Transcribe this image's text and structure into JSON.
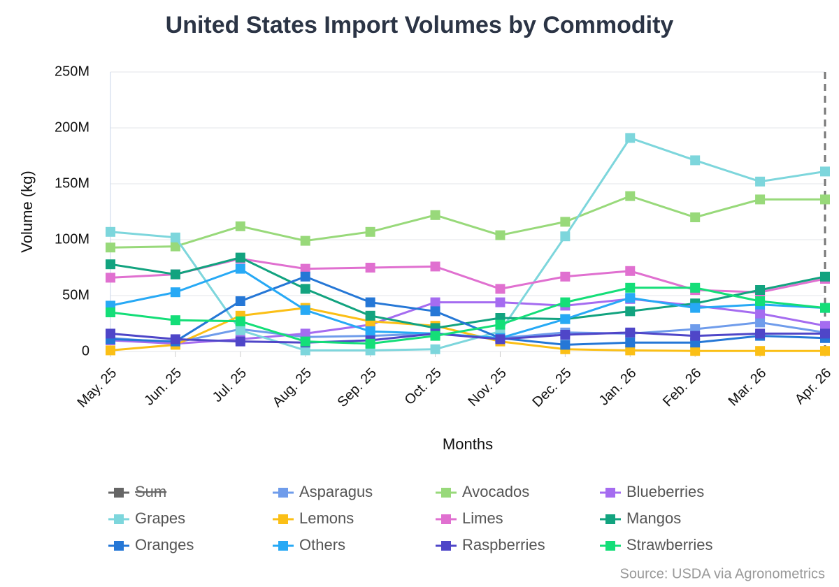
{
  "chart_data": {
    "type": "line",
    "title": "United States Import Volumes by Commodity",
    "x_label": "Months",
    "y_label": "Volume (kg)",
    "source": "Source: USDA via Agronometrics",
    "categories": [
      "May. 25",
      "Jun. 25",
      "Jul. 25",
      "Aug. 25",
      "Sep. 25",
      "Oct. 25",
      "Nov. 25",
      "Dec. 25",
      "Jan. 26",
      "Feb. 26",
      "Mar. 26",
      "Apr. 26"
    ],
    "ylim": [
      0,
      250000000
    ],
    "yticks": [
      {
        "value": 0,
        "label": "0"
      },
      {
        "value": 50000000,
        "label": "50M"
      },
      {
        "value": 100000000,
        "label": "100M"
      },
      {
        "value": 150000000,
        "label": "150M"
      },
      {
        "value": 200000000,
        "label": "200M"
      },
      {
        "value": 250000000,
        "label": "250M"
      }
    ],
    "grid": true,
    "legend_hidden": [
      {
        "name": "Sum",
        "color": "#666666"
      }
    ],
    "series": [
      {
        "name": "Asparagus",
        "color": "#6f9ceb",
        "values": [
          12000000,
          8000000,
          20000000,
          13000000,
          14000000,
          16000000,
          12000000,
          17000000,
          16000000,
          20000000,
          26000000,
          17000000
        ]
      },
      {
        "name": "Avocados",
        "color": "#98d97a",
        "values": [
          93000000,
          94000000,
          112000000,
          99000000,
          107000000,
          122000000,
          104000000,
          116000000,
          139000000,
          120000000,
          136000000,
          136000000
        ]
      },
      {
        "name": "Blueberries",
        "color": "#a56cf0",
        "values": [
          10000000,
          7000000,
          11000000,
          16000000,
          24000000,
          44000000,
          44000000,
          41000000,
          47000000,
          41000000,
          34000000,
          23000000
        ]
      },
      {
        "name": "Grapes",
        "color": "#7dd6dc",
        "values": [
          107000000,
          102000000,
          19000000,
          1000000,
          1000000,
          2000000,
          18000000,
          103000000,
          191000000,
          171000000,
          152000000,
          161000000
        ]
      },
      {
        "name": "Lemons",
        "color": "#fbbf16",
        "values": [
          1000000,
          6000000,
          32000000,
          39000000,
          27000000,
          23000000,
          9000000,
          2000000,
          1000000,
          500000,
          500000,
          500000
        ]
      },
      {
        "name": "Limes",
        "color": "#e070d0",
        "values": [
          66000000,
          69000000,
          83000000,
          74000000,
          75000000,
          76000000,
          56000000,
          67000000,
          72000000,
          55000000,
          53000000,
          65000000
        ]
      },
      {
        "name": "Mangos",
        "color": "#12a37f",
        "values": [
          78000000,
          69000000,
          84000000,
          56000000,
          32000000,
          21000000,
          30000000,
          29000000,
          36000000,
          43000000,
          55000000,
          67000000
        ]
      },
      {
        "name": "Oranges",
        "color": "#2577d6",
        "values": [
          11000000,
          9000000,
          45000000,
          67000000,
          44000000,
          36000000,
          12000000,
          6000000,
          8000000,
          8000000,
          14000000,
          12000000
        ]
      },
      {
        "name": "Others",
        "color": "#27a9f5",
        "values": [
          41000000,
          53000000,
          74000000,
          37000000,
          18000000,
          16000000,
          12000000,
          29000000,
          48000000,
          39000000,
          42000000,
          39000000
        ]
      },
      {
        "name": "Raspberries",
        "color": "#4f46c8",
        "values": [
          16000000,
          11000000,
          9000000,
          8000000,
          10000000,
          16000000,
          11000000,
          15000000,
          17000000,
          14000000,
          16000000,
          16000000
        ]
      },
      {
        "name": "Strawberries",
        "color": "#14de78",
        "values": [
          35000000,
          28000000,
          27000000,
          9000000,
          7000000,
          14000000,
          24000000,
          44000000,
          57000000,
          57000000,
          45000000,
          39000000
        ]
      }
    ]
  }
}
